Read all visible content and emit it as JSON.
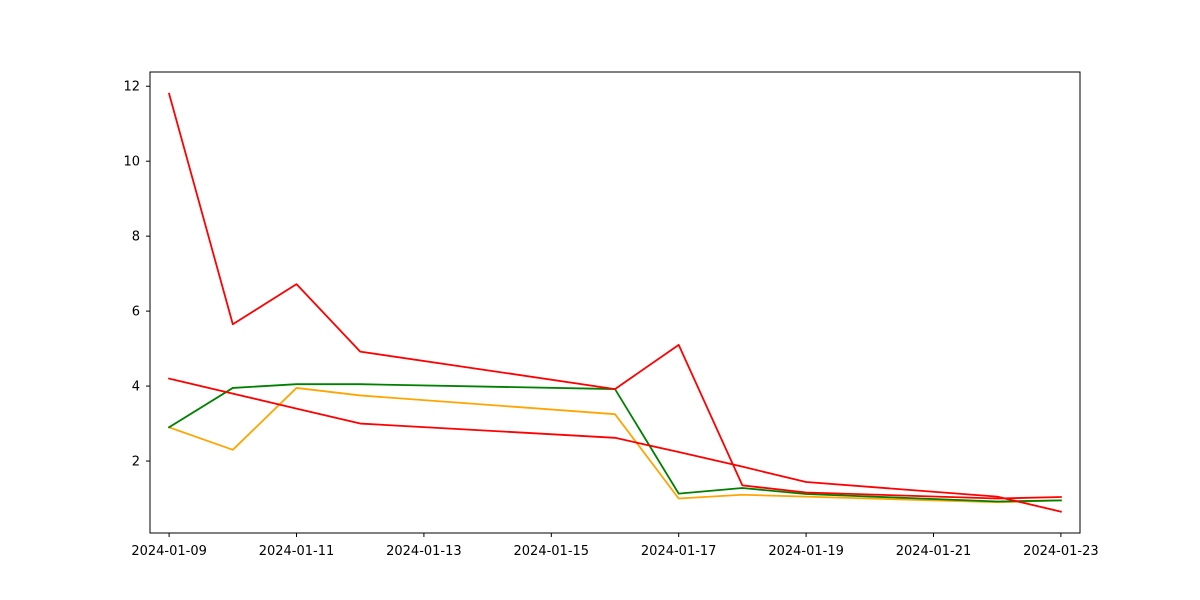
{
  "chart_data": {
    "type": "line",
    "title": "",
    "xlabel": "",
    "ylabel": "",
    "x_tick_labels": [
      "2024-01-09",
      "2024-01-11",
      "2024-01-13",
      "2024-01-15",
      "2024-01-17",
      "2024-01-19",
      "2024-01-21",
      "2024-01-23"
    ],
    "y_tick_labels": [
      "2",
      "4",
      "6",
      "8",
      "10",
      "12"
    ],
    "xlim": [
      "2024-01-08 16:48",
      "2024-01-23 07:12"
    ],
    "ylim": [
      0.08,
      12.38
    ],
    "grid": false,
    "legend": false,
    "x": [
      "2024-01-09",
      "2024-01-10",
      "2024-01-11",
      "2024-01-12",
      "2024-01-16",
      "2024-01-17",
      "2024-01-18",
      "2024-01-19",
      "2024-01-22",
      "2024-01-23"
    ],
    "series": [
      {
        "color": "#ffa500",
        "values": [
          2.9,
          2.3,
          3.95,
          3.75,
          3.25,
          1.0,
          1.1,
          1.05,
          0.9,
          0.95
        ]
      },
      {
        "color": "#008000",
        "values": [
          2.9,
          3.95,
          4.05,
          4.05,
          3.92,
          1.13,
          1.28,
          1.12,
          0.92,
          0.95
        ]
      },
      {
        "color": "#ff0000",
        "values": [
          11.8,
          5.65,
          6.72,
          4.92,
          3.92,
          5.1,
          1.35,
          1.16,
          1.0,
          1.04
        ]
      },
      {
        "color": "#ff0000",
        "values": [
          4.2,
          3.8,
          3.4,
          3.0,
          2.62,
          2.24,
          1.85,
          1.44,
          1.05,
          0.65
        ]
      }
    ]
  }
}
